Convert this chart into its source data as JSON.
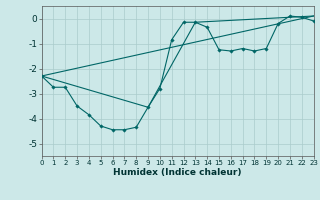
{
  "xlabel": "Humidex (Indice chaleur)",
  "xlim": [
    0,
    23
  ],
  "ylim": [
    -5.5,
    0.5
  ],
  "yticks": [
    0,
    -1,
    -2,
    -3,
    -4,
    -5
  ],
  "xticks": [
    0,
    1,
    2,
    3,
    4,
    5,
    6,
    7,
    8,
    9,
    10,
    11,
    12,
    13,
    14,
    15,
    16,
    17,
    18,
    19,
    20,
    21,
    22,
    23
  ],
  "bg_color": "#cce8e8",
  "line_color": "#006666",
  "grid_color": "#aacccc",
  "line1_x": [
    0,
    1,
    2,
    3,
    4,
    5,
    6,
    7,
    8,
    9,
    10,
    11,
    12,
    13,
    14,
    15,
    16,
    17,
    18,
    19,
    20,
    21,
    22,
    23
  ],
  "line1_y": [
    -2.3,
    -2.75,
    -2.75,
    -3.5,
    -3.85,
    -4.3,
    -4.45,
    -4.45,
    -4.35,
    -3.55,
    -2.8,
    -0.85,
    -0.15,
    -0.15,
    -0.35,
    -1.25,
    -1.3,
    -1.2,
    -1.3,
    -1.2,
    -0.2,
    0.1,
    0.05,
    -0.1
  ],
  "line2_x": [
    0,
    23
  ],
  "line2_y": [
    -2.3,
    0.1
  ],
  "line3_x": [
    0,
    9,
    13,
    23
  ],
  "line3_y": [
    -2.3,
    -3.55,
    -0.15,
    0.1
  ]
}
